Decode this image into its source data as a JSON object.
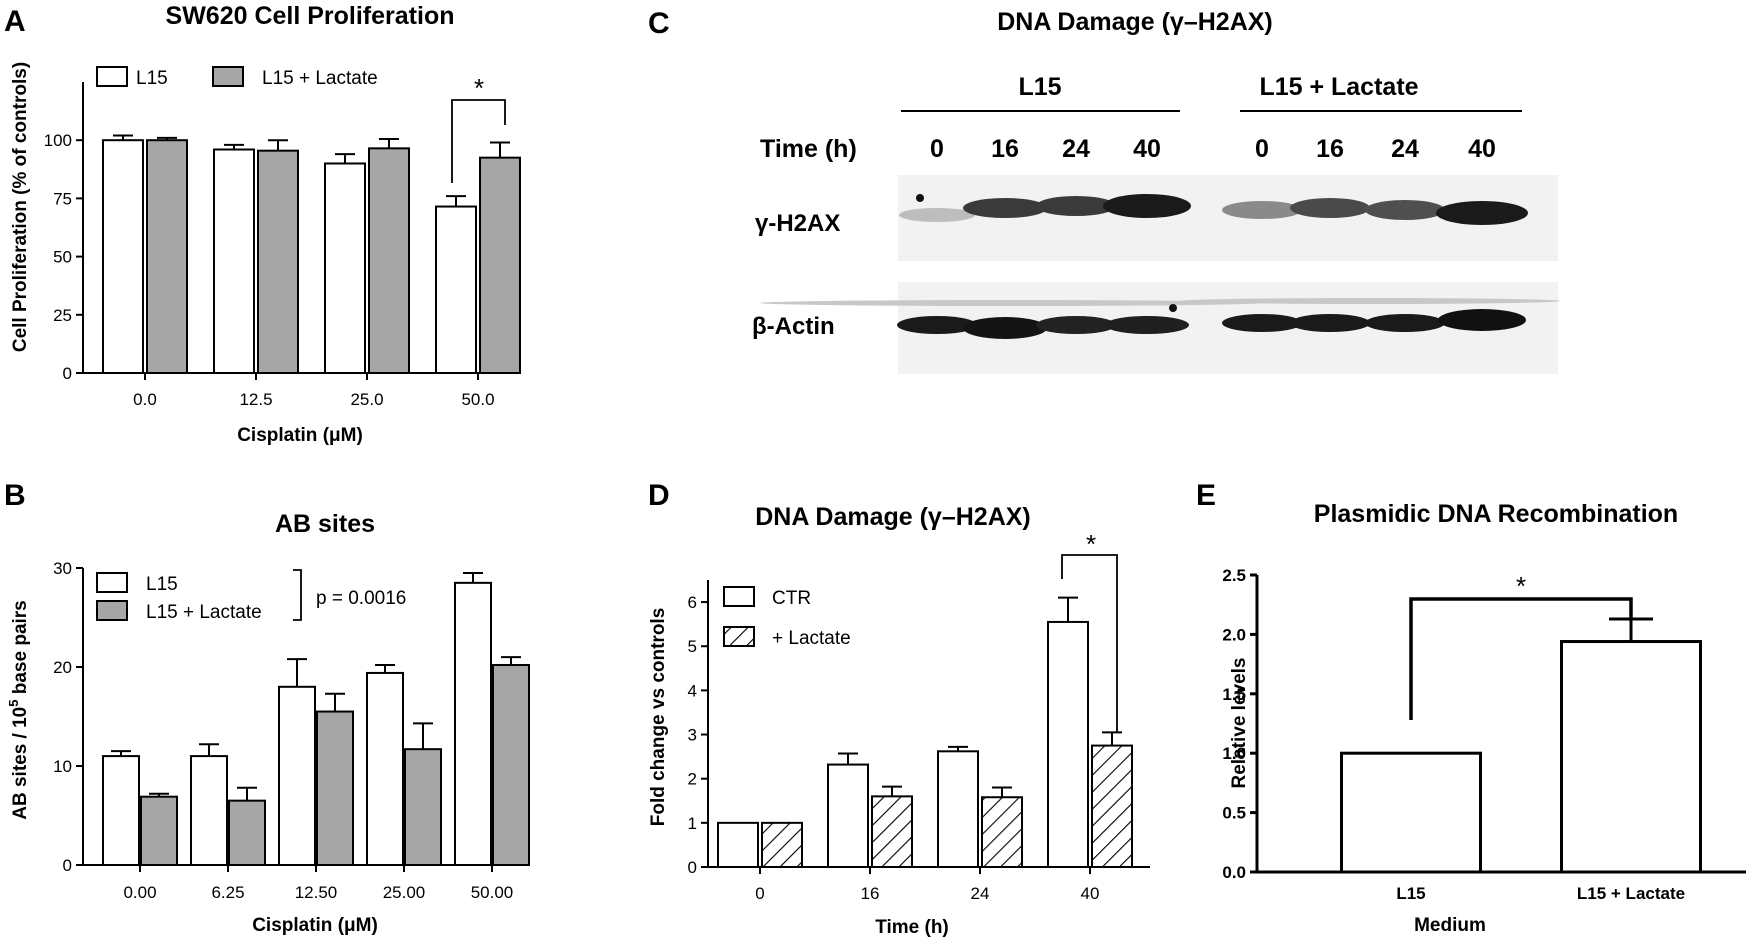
{
  "panels": {
    "A": "A",
    "B": "B",
    "C": "C",
    "D": "D",
    "E": "E"
  },
  "blot": {
    "title": "DNA Damage (γ–H2AX)",
    "groups": [
      "L15",
      "L15 + Lactate"
    ],
    "time_label": "Time (h)",
    "times": [
      "0",
      "16",
      "24",
      "40",
      "0",
      "16",
      "24",
      "40"
    ],
    "rows": [
      "γ-H2AX",
      "β-Actin"
    ]
  },
  "colors": {
    "white_bar": "#ffffff",
    "gray_bar": "#a6a6a6",
    "ink": "#000000"
  },
  "chart_data": [
    {
      "id": "A",
      "type": "bar",
      "title": "SW620 Cell Proliferation",
      "xlabel": "Cisplatin (μM)",
      "ylabel": "Cell Proliferation (% of controls)",
      "categories": [
        "0.0",
        "12.5",
        "25.0",
        "50.0"
      ],
      "series": [
        {
          "name": "L15",
          "values": [
            100,
            96,
            90,
            71.5
          ],
          "errors": [
            2,
            2,
            4,
            4.5
          ],
          "fill": "white"
        },
        {
          "name": "L15 + Lactate",
          "values": [
            100,
            95.5,
            96.5,
            92.5
          ],
          "errors": [
            1,
            4.5,
            4,
            6.5
          ],
          "fill": "gray"
        }
      ],
      "ylim": [
        0,
        125
      ],
      "yticks": [
        "0",
        "25",
        "50",
        "75",
        "100"
      ],
      "legend": "top-left",
      "annotation": "*"
    },
    {
      "id": "B",
      "type": "bar",
      "title": "AB sites",
      "xlabel": "Cisplatin (μM)",
      "ylabel": "AB sites / 10",
      "ylabel_sup": "5",
      "ylabel_tail": " base pairs",
      "categories": [
        "0.00",
        "6.25",
        "12.50",
        "25.00",
        "50.00"
      ],
      "series": [
        {
          "name": "L15",
          "values": [
            11,
            11,
            18,
            19.4,
            28.5
          ],
          "errors": [
            0.5,
            1.2,
            2.8,
            0.8,
            1.0
          ],
          "fill": "white"
        },
        {
          "name": "L15 + Lactate",
          "values": [
            6.9,
            6.5,
            15.5,
            11.7,
            20.2
          ],
          "errors": [
            0.3,
            1.3,
            1.8,
            2.6,
            0.8
          ],
          "fill": "gray"
        }
      ],
      "ylim": [
        0,
        30
      ],
      "yticks": [
        "0",
        "10",
        "20",
        "30"
      ],
      "legend": "top-left",
      "annotation": "p = 0.0016"
    },
    {
      "id": "D",
      "type": "bar",
      "title": "DNA Damage (γ–H2AX)",
      "xlabel": "Time (h)",
      "ylabel": "Fold change vs controls",
      "categories": [
        "0",
        "16",
        "24",
        "40"
      ],
      "series": [
        {
          "name": "CTR",
          "values": [
            1,
            2.32,
            2.62,
            5.55
          ],
          "errors": [
            0,
            0.25,
            0.1,
            0.55
          ],
          "fill": "white"
        },
        {
          "name": "+ Lactate",
          "values": [
            1,
            1.6,
            1.58,
            2.75
          ],
          "errors": [
            0,
            0.22,
            0.22,
            0.3
          ],
          "fill": "hatch"
        }
      ],
      "ylim": [
        0,
        6.5
      ],
      "yticks": [
        "0",
        "1",
        "2",
        "3",
        "4",
        "5",
        "6"
      ],
      "legend": "top-left",
      "annotation": "*"
    },
    {
      "id": "E",
      "type": "bar",
      "title": "Plasmidic DNA Recombination",
      "xlabel": "Medium",
      "ylabel": "Relative levels",
      "categories": [
        "L15",
        "L15 + Lactate"
      ],
      "series": [
        {
          "values": [
            1.0,
            1.94
          ],
          "errors": [
            0,
            0.19
          ],
          "fill": "white"
        }
      ],
      "ylim": [
        0,
        2.5
      ],
      "yticks": [
        "0.0",
        "0.5",
        "1.0",
        "1.5",
        "2.0",
        "2.5"
      ],
      "annotation": "*"
    }
  ]
}
